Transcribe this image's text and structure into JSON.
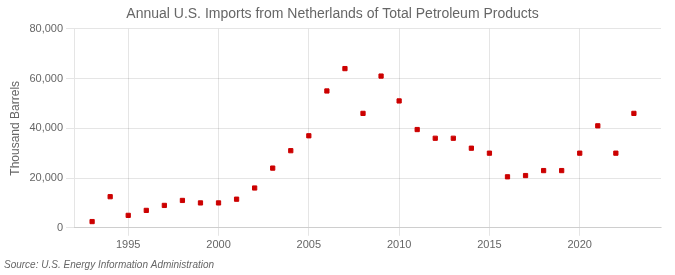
{
  "chart_data": {
    "type": "scatter",
    "title": "Annual U.S. Imports from Netherlands of Total Petroleum Products",
    "ylabel": "Thousand Barrels",
    "source": "Source: U.S. Energy Information Administration",
    "x": [
      1993,
      1994,
      1995,
      1996,
      1997,
      1998,
      1999,
      2000,
      2001,
      2002,
      2003,
      2004,
      2005,
      2006,
      2007,
      2008,
      2009,
      2010,
      2011,
      2012,
      2013,
      2014,
      2015,
      2016,
      2017,
      2018,
      2019,
      2020,
      2021,
      2022,
      2023
    ],
    "values": [
      2500,
      12500,
      5000,
      7000,
      9000,
      11000,
      10000,
      10000,
      11500,
      16000,
      24000,
      31000,
      37000,
      55000,
      64000,
      46000,
      61000,
      51000,
      39500,
      36000,
      36000,
      32000,
      30000,
      20500,
      21000,
      23000,
      23000,
      30000,
      41000,
      30000,
      46000
    ],
    "color": "#cc0000",
    "marker": "square",
    "xlim": [
      1992,
      2024.5
    ],
    "ylim": [
      0,
      80000
    ],
    "xticks": [
      1995,
      2000,
      2005,
      2010,
      2015,
      2020
    ],
    "yticks": [
      0,
      {
        "value": 20000,
        "label": "20,000"
      },
      {
        "value": 40000,
        "label": "40,000"
      },
      {
        "value": 60000,
        "label": "60,000"
      },
      {
        "value": 80000,
        "label": "80,000"
      }
    ],
    "grid": true
  }
}
